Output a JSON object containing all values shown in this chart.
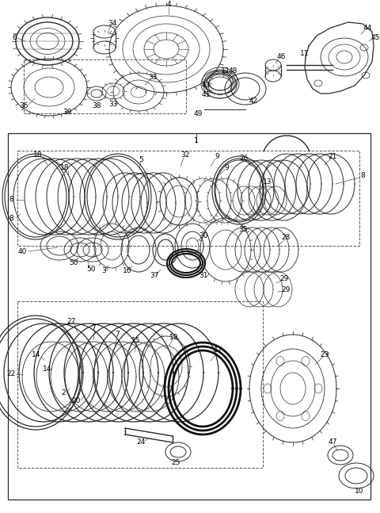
{
  "bg_color": "#ffffff",
  "line_color": "#2a2a2a",
  "fig_width": 4.8,
  "fig_height": 6.47,
  "dpi": 100
}
